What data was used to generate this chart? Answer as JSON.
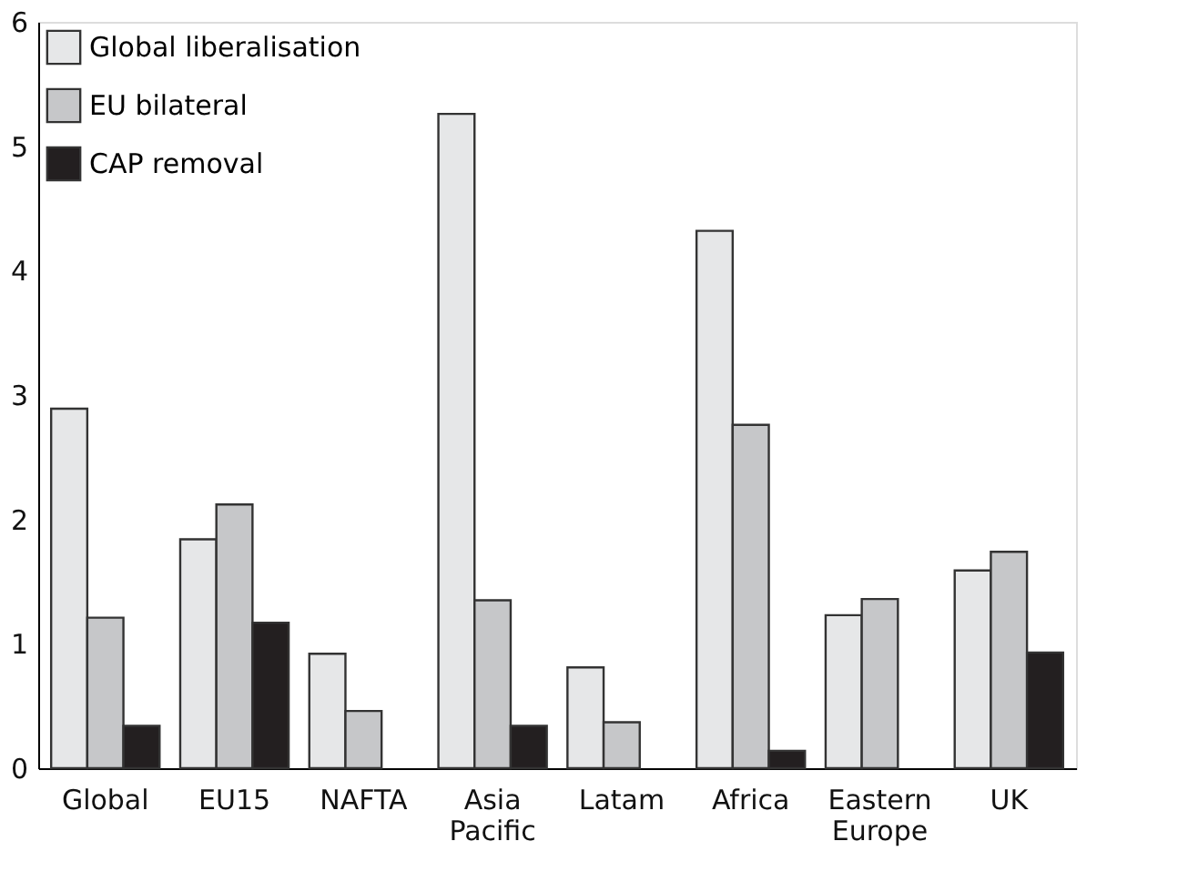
{
  "chart_data": {
    "type": "bar",
    "categories": [
      "Global",
      "EU15",
      "NAFTA",
      "Asia Pacific",
      "Latam",
      "Africa",
      "Eastern Europe",
      "UK"
    ],
    "series": [
      {
        "name": "Global liberalisation",
        "color": "#e6e7e8",
        "values": [
          2.89,
          1.84,
          0.92,
          5.26,
          0.81,
          4.32,
          1.23,
          1.59
        ]
      },
      {
        "name": "EU bilateral",
        "color": "#c6c7c9",
        "values": [
          1.21,
          2.12,
          0.46,
          1.35,
          0.37,
          2.76,
          1.36,
          1.74
        ]
      },
      {
        "name": "CAP removal",
        "color": "#231f20",
        "values": [
          0.34,
          1.17,
          null,
          0.34,
          null,
          0.14,
          null,
          0.93
        ]
      }
    ],
    "ylim": [
      0,
      6
    ],
    "yticks": [
      0,
      1,
      2,
      3,
      4,
      5,
      6
    ],
    "grid": false,
    "legend": "top left"
  }
}
